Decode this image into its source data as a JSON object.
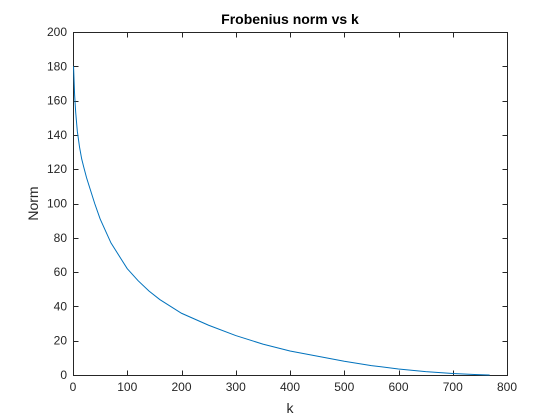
{
  "chart_data": {
    "type": "line",
    "title": "Frobenius norm vs k",
    "xlabel": "k",
    "ylabel": "Norm",
    "xlim": [
      0,
      800
    ],
    "ylim": [
      0,
      200
    ],
    "xticks": [
      "0",
      "100",
      "200",
      "300",
      "400",
      "500",
      "600",
      "700",
      "800"
    ],
    "yticks": [
      "0",
      "20",
      "40",
      "60",
      "80",
      "100",
      "120",
      "140",
      "160",
      "180",
      "200"
    ],
    "grid": false,
    "line_color": "#0072BD",
    "series": [
      {
        "x": [
          1,
          3,
          5,
          8,
          12,
          16,
          20,
          25,
          30,
          40,
          50,
          60,
          70,
          80,
          90,
          100,
          120,
          140,
          160,
          180,
          200,
          250,
          300,
          350,
          400,
          450,
          500,
          550,
          600,
          650,
          700,
          740,
          760,
          768
        ],
        "y": [
          180,
          163,
          153,
          142,
          133,
          126,
          121,
          115,
          110,
          100,
          91,
          84,
          77,
          72,
          67,
          62,
          55,
          49,
          44,
          40,
          36,
          29,
          23,
          18,
          14,
          11,
          8,
          5.5,
          3.5,
          2,
          0.9,
          0.3,
          0.1,
          0
        ]
      }
    ]
  }
}
